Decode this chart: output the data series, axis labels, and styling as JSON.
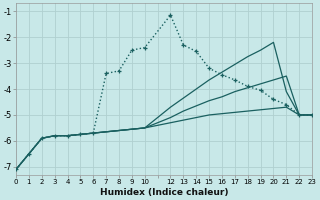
{
  "xlabel": "Humidex (Indice chaleur)",
  "bg_color": "#c8e8e8",
  "grid_color": "#b0d0d0",
  "line_color": "#1a6060",
  "xlim": [
    0,
    23
  ],
  "ylim": [
    -7.3,
    -0.7
  ],
  "yticks": [
    -7,
    -6,
    -5,
    -4,
    -3,
    -2,
    -1
  ],
  "curve_x": [
    0,
    1,
    2,
    3,
    4,
    5,
    6,
    7,
    8,
    9,
    10,
    12,
    13,
    14,
    15,
    16,
    17,
    18,
    19,
    20,
    21,
    22,
    23
  ],
  "curve_y": [
    -7.1,
    -6.5,
    -5.9,
    -5.8,
    -5.8,
    -5.75,
    -5.7,
    -3.4,
    -3.3,
    -2.5,
    -2.4,
    -1.15,
    -2.3,
    -2.55,
    -3.2,
    -3.45,
    -3.65,
    -3.9,
    -4.05,
    -4.4,
    -4.6,
    -5.0,
    -5.0
  ],
  "line1_x": [
    0,
    1,
    2,
    3,
    4,
    5,
    6,
    7,
    8,
    9,
    10,
    12,
    13,
    14,
    15,
    16,
    17,
    18,
    19,
    20,
    21,
    22,
    23
  ],
  "line1_y": [
    -7.1,
    -6.5,
    -5.9,
    -5.8,
    -5.8,
    -5.75,
    -5.7,
    -5.65,
    -5.6,
    -5.55,
    -5.5,
    -5.3,
    -5.2,
    -5.1,
    -5.0,
    -4.95,
    -4.9,
    -4.85,
    -4.8,
    -4.75,
    -4.7,
    -5.0,
    -5.0
  ],
  "line2_x": [
    0,
    1,
    2,
    3,
    4,
    5,
    6,
    7,
    8,
    9,
    10,
    12,
    13,
    14,
    15,
    16,
    17,
    18,
    19,
    20,
    21,
    22,
    23
  ],
  "line2_y": [
    -7.1,
    -6.5,
    -5.9,
    -5.8,
    -5.8,
    -5.75,
    -5.7,
    -5.65,
    -5.6,
    -5.55,
    -5.5,
    -5.1,
    -4.85,
    -4.65,
    -4.45,
    -4.3,
    -4.1,
    -3.95,
    -3.8,
    -3.65,
    -3.5,
    -5.0,
    -5.0
  ],
  "line3_x": [
    0,
    1,
    2,
    3,
    4,
    5,
    6,
    7,
    8,
    9,
    10,
    12,
    13,
    14,
    15,
    16,
    17,
    18,
    19,
    20,
    21,
    22,
    23
  ],
  "line3_y": [
    -7.1,
    -6.5,
    -5.9,
    -5.8,
    -5.8,
    -5.75,
    -5.7,
    -5.65,
    -5.6,
    -5.55,
    -5.5,
    -4.7,
    -4.35,
    -4.0,
    -3.65,
    -3.35,
    -3.05,
    -2.75,
    -2.5,
    -2.2,
    -4.1,
    -5.0,
    -5.0
  ]
}
